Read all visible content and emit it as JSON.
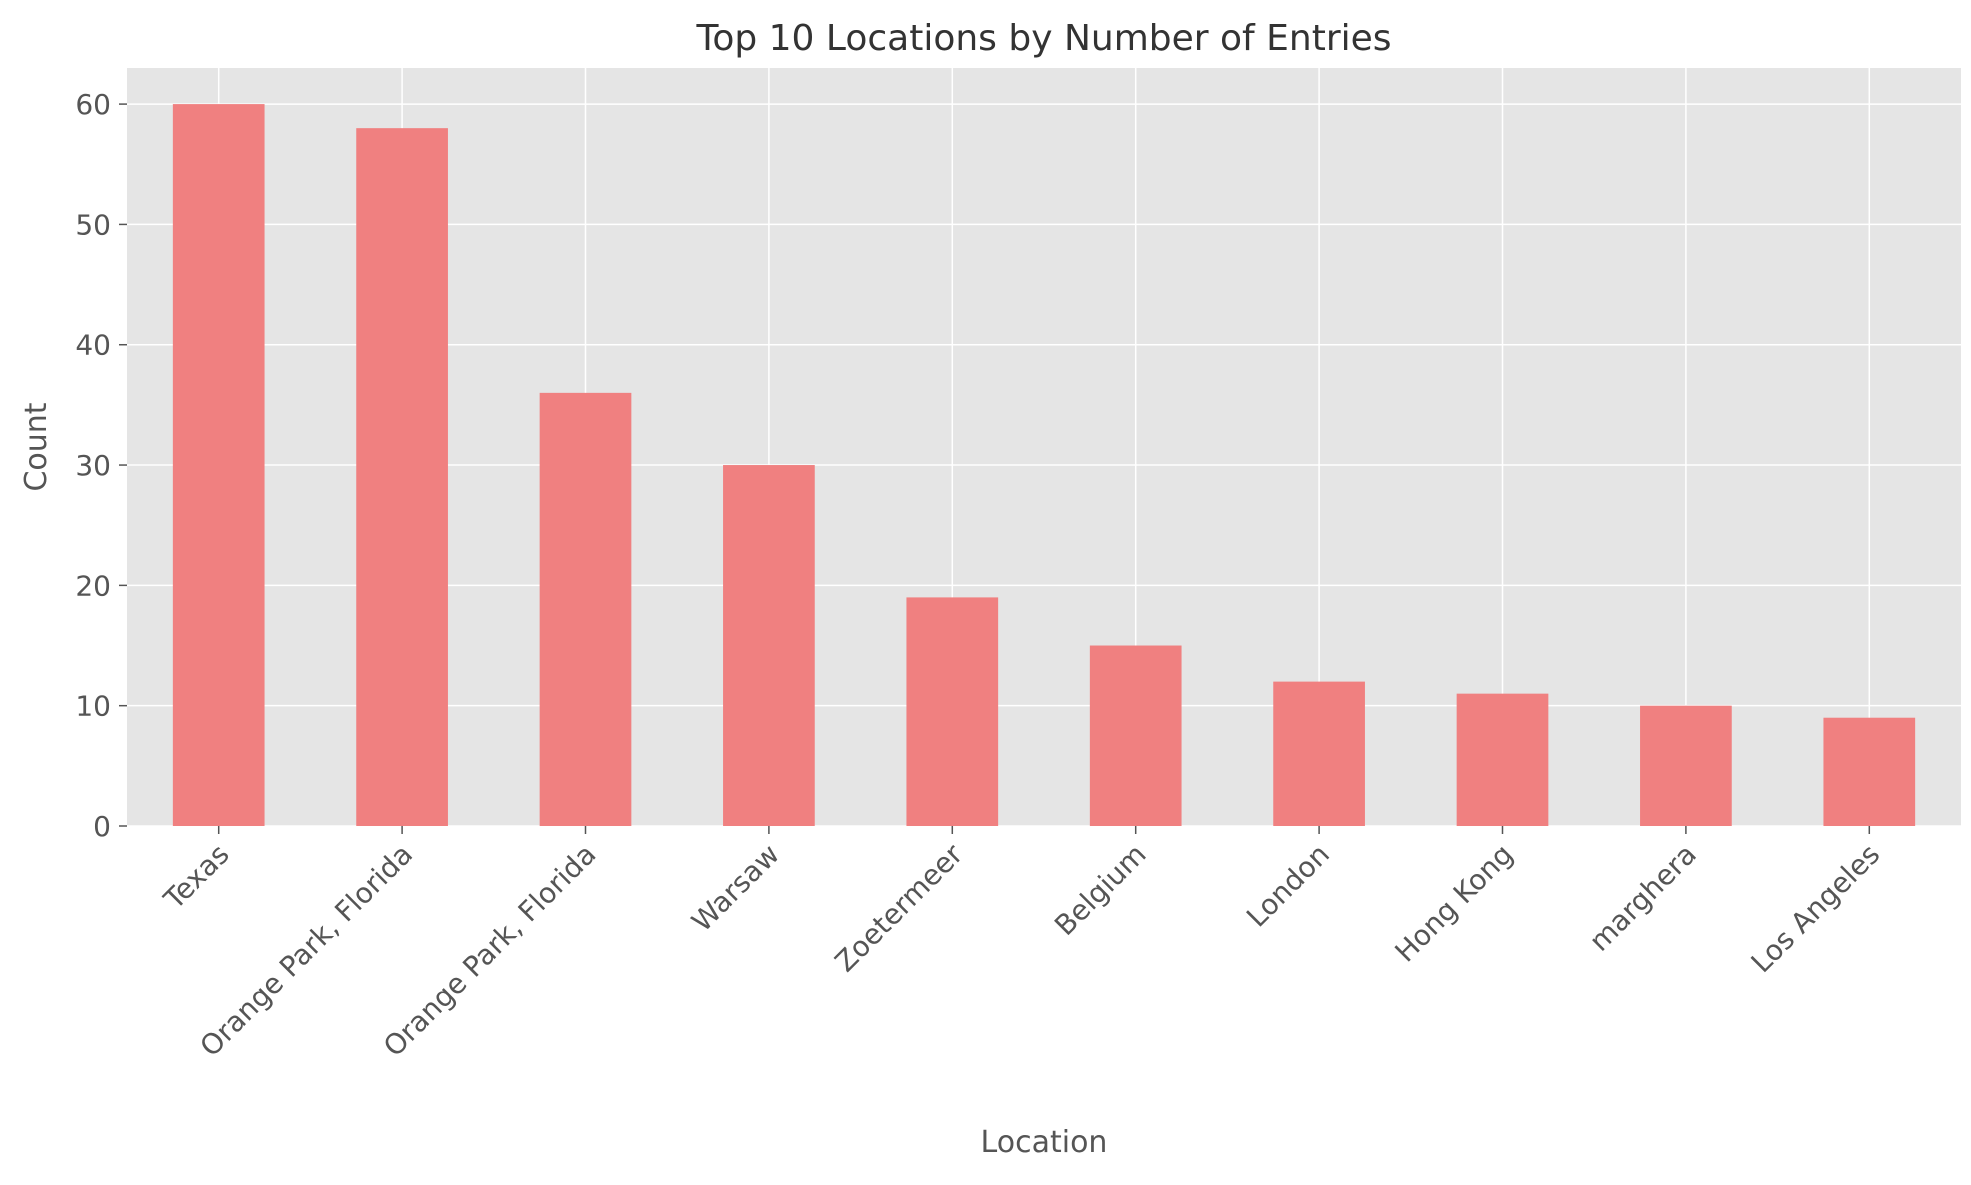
{
  "chart_data": {
    "type": "bar",
    "title": "Top 10 Locations by Number of Entries",
    "xlabel": "Location",
    "ylabel": "Count",
    "categories": [
      "Texas",
      "Orange Park, Florida",
      "Orange Park, Florida",
      "Warsaw",
      "Zoetermeer",
      "Belgium",
      "London",
      "Hong Kong",
      "marghera",
      "Los Angeles"
    ],
    "values": [
      60,
      58,
      36,
      30,
      19,
      15,
      12,
      11,
      10,
      9
    ],
    "ylim": [
      0,
      63
    ],
    "yticks": [
      0,
      10,
      20,
      30,
      40,
      50,
      60
    ],
    "ytick_labels": [
      "0",
      "10",
      "20",
      "30",
      "40",
      "50",
      "60"
    ],
    "grid": true,
    "colors": {
      "bar": "#f08080",
      "background": "#e5e5e5",
      "grid": "#ffffff"
    }
  }
}
